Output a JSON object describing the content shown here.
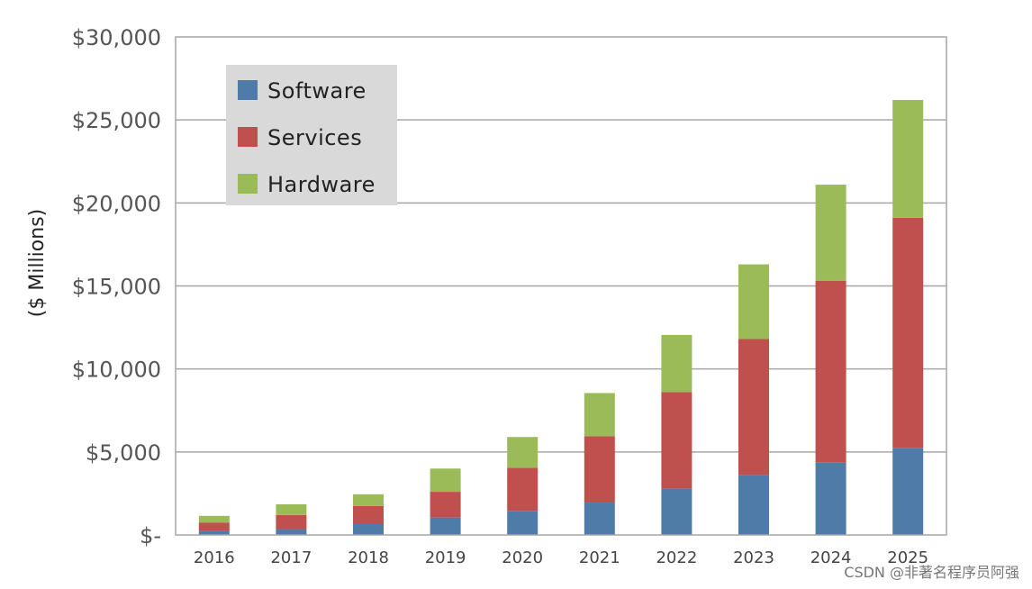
{
  "chart_data": {
    "type": "bar",
    "stacked": true,
    "title": "",
    "xlabel": "",
    "ylabel": "($ Millions)",
    "ylim": [
      0,
      30000
    ],
    "yticks": [
      0,
      5000,
      10000,
      15000,
      20000,
      25000,
      30000
    ],
    "ytick_labels": [
      "$-",
      "$5,000",
      "$10,000",
      "$15,000",
      "$20,000",
      "$25,000",
      "$30,000"
    ],
    "categories": [
      "2016",
      "2017",
      "2018",
      "2019",
      "2020",
      "2021",
      "2022",
      "2023",
      "2024",
      "2025"
    ],
    "series": [
      {
        "name": "Software",
        "color": "#4f7ba8",
        "values": [
          250,
          350,
          650,
          1050,
          1450,
          1950,
          2800,
          3600,
          4350,
          5250
        ]
      },
      {
        "name": "Services",
        "color": "#c0504d",
        "values": [
          500,
          850,
          1100,
          1550,
          2600,
          4000,
          5800,
          8200,
          10950,
          13850
        ]
      },
      {
        "name": "Hardware",
        "color": "#9bbb59",
        "values": [
          400,
          650,
          700,
          1400,
          1850,
          2600,
          3450,
          4500,
          5800,
          7100
        ]
      }
    ],
    "legend_position": "top-left",
    "grid": true
  },
  "watermark": "CSDN @非著名程序员阿强"
}
